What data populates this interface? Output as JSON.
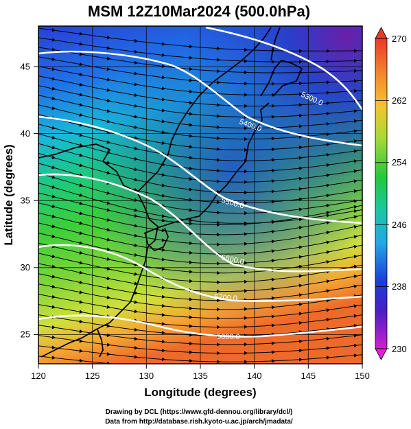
{
  "title": "MSM 12Z10Mar2024 (500.0hPa)",
  "xlabel": "Longitude (degrees)",
  "ylabel": "Latitude  (degrees)",
  "xticks": [
    "120",
    "125",
    "130",
    "135",
    "140",
    "145",
    "150"
  ],
  "yticks": [
    "25",
    "30",
    "35",
    "40",
    "45"
  ],
  "colorbar_ticks": [
    "270",
    "262",
    "254",
    "246",
    "238",
    "230"
  ],
  "credits": {
    "line1": "Drawing by DCL (https://www.gfd-dennou.org/library/dcl/)",
    "line2": "Data from http://database.rish.kyoto-u.ac.jp/arch/jmadata/"
  },
  "map": {
    "lon_range": [
      120,
      150
    ],
    "lat_range": [
      22.4,
      47.6
    ],
    "shaded_field_range_K": [
      230,
      270
    ],
    "contours": [
      {
        "label": "5300.0"
      },
      {
        "label": "5400.0"
      },
      {
        "label": "5500.0"
      },
      {
        "label": "5600.0"
      },
      {
        "label": "5700.0"
      },
      {
        "label": "5800.0"
      }
    ]
  }
}
